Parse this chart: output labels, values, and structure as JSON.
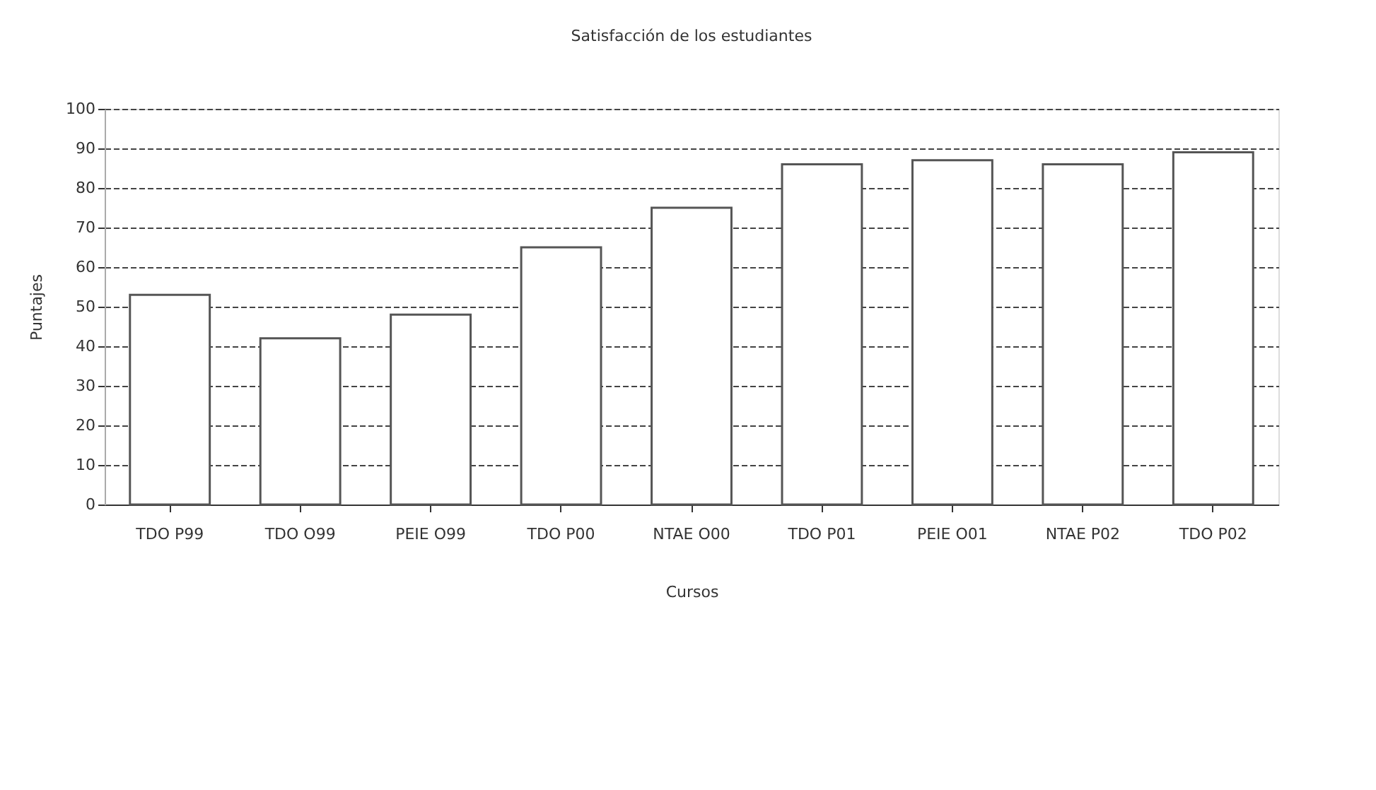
{
  "chart_data": {
    "type": "bar",
    "title": "Satisfacción de los estudiantes",
    "xlabel": "Cursos",
    "ylabel": "Puntajes",
    "categories": [
      "TDO P99",
      "TDO O99",
      "PEIE O99",
      "TDO P00",
      "NTAE O00",
      "TDO P01",
      "PEIE O01",
      "NTAE P02",
      "TDO P02"
    ],
    "values": [
      53,
      42,
      48,
      65,
      75,
      86,
      87,
      86,
      89
    ],
    "color": "#ffffff",
    "ylim": [
      0,
      100
    ],
    "yticks": [
      0,
      10,
      20,
      30,
      40,
      50,
      60,
      70,
      80,
      90,
      100
    ],
    "grid": "y"
  }
}
